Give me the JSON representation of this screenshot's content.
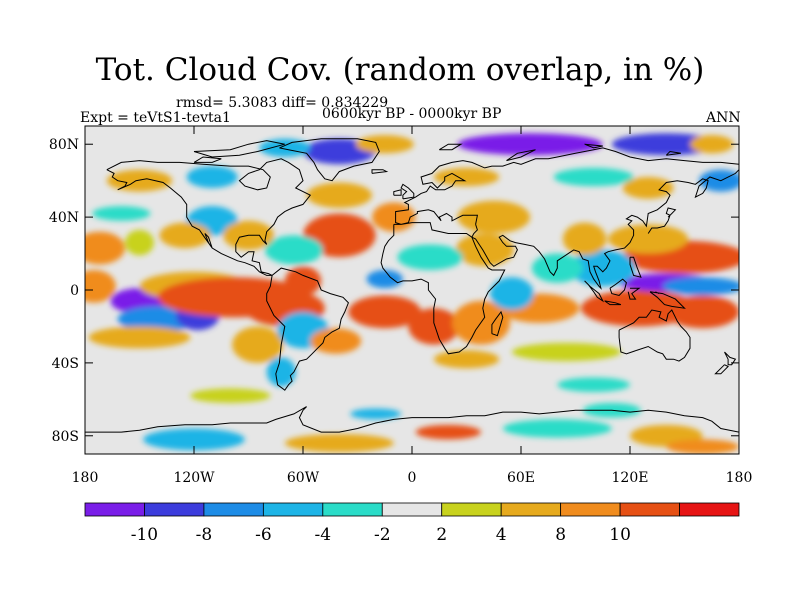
{
  "title": "Tot. Cloud Cov. (random overlap, in %)",
  "stats": "rmsd= 5.3083 diff= 0.834229",
  "experiment": "Expt = teVtS1-tevta1",
  "period": "0600kyr BP - 0000kyr BP",
  "season": "ANN",
  "map": {
    "projection": "cylindrical-equidistant",
    "lon_range": [
      -180,
      180
    ],
    "lat_range": [
      -90,
      90
    ],
    "lat_ticks": [
      {
        "value": 80,
        "label": "80N"
      },
      {
        "value": 40,
        "label": "40N"
      },
      {
        "value": 0,
        "label": "0"
      },
      {
        "value": -40,
        "label": "40S"
      },
      {
        "value": -80,
        "label": "80S"
      }
    ],
    "lon_ticks": [
      {
        "value": -180,
        "label": "180"
      },
      {
        "value": -120,
        "label": "120W"
      },
      {
        "value": -60,
        "label": "60W"
      },
      {
        "value": 0,
        "label": "0"
      },
      {
        "value": 60,
        "label": "60E"
      },
      {
        "value": 120,
        "label": "120E"
      },
      {
        "value": 180,
        "label": "180"
      }
    ]
  },
  "colorbar": {
    "colors": [
      "#7a1ee8",
      "#3c3cdc",
      "#1e8ce6",
      "#1eb4e6",
      "#2adcc8",
      "#e6e6e6",
      "#c8d21e",
      "#e6aa1e",
      "#f08c1e",
      "#e65014",
      "#e61414"
    ],
    "labels": [
      "-10",
      "-8",
      "-6",
      "-4",
      "-2",
      "2",
      "4",
      "8",
      "10"
    ]
  },
  "field_blobs": [
    {
      "lon": -172,
      "lat": 23,
      "w": 14,
      "h": 9,
      "v": 9
    },
    {
      "lon": -150,
      "lat": 26,
      "w": 8,
      "h": 7,
      "v": 3
    },
    {
      "lon": -175,
      "lat": 2,
      "w": 12,
      "h": 9,
      "v": 8
    },
    {
      "lon": -150,
      "lat": -6,
      "w": 16,
      "h": 7,
      "v": -11
    },
    {
      "lon": -140,
      "lat": -16,
      "w": 22,
      "h": 7,
      "v": -7
    },
    {
      "lon": -118,
      "lat": -14,
      "w": 12,
      "h": 8,
      "v": -10
    },
    {
      "lon": -150,
      "lat": -26,
      "w": 28,
      "h": 6,
      "v": 4
    },
    {
      "lon": -120,
      "lat": 2,
      "w": 30,
      "h": 8,
      "v": 5
    },
    {
      "lon": -98,
      "lat": -4,
      "w": 42,
      "h": 11,
      "v": 11
    },
    {
      "lon": -70,
      "lat": -10,
      "w": 22,
      "h": 10,
      "v": 10
    },
    {
      "lon": -85,
      "lat": -30,
      "w": 14,
      "h": 10,
      "v": 4
    },
    {
      "lon": -72,
      "lat": -45,
      "w": 8,
      "h": 8,
      "v": -6
    },
    {
      "lon": -60,
      "lat": -22,
      "w": 14,
      "h": 10,
      "v": -5
    },
    {
      "lon": -42,
      "lat": -28,
      "w": 14,
      "h": 7,
      "v": 9
    },
    {
      "lon": -15,
      "lat": -12,
      "w": 20,
      "h": 9,
      "v": 10
    },
    {
      "lon": 12,
      "lat": -20,
      "w": 14,
      "h": 10,
      "v": 10
    },
    {
      "lon": 38,
      "lat": -18,
      "w": 16,
      "h": 12,
      "v": 9
    },
    {
      "lon": 30,
      "lat": -38,
      "w": 18,
      "h": 5,
      "v": 4
    },
    {
      "lon": 70,
      "lat": -10,
      "w": 22,
      "h": 8,
      "v": 8
    },
    {
      "lon": 55,
      "lat": -2,
      "w": 12,
      "h": 9,
      "v": -5
    },
    {
      "lon": 85,
      "lat": -34,
      "w": 30,
      "h": 5,
      "v": 3
    },
    {
      "lon": 125,
      "lat": -10,
      "w": 32,
      "h": 10,
      "v": 11
    },
    {
      "lon": 160,
      "lat": -12,
      "w": 20,
      "h": 9,
      "v": 10
    },
    {
      "lon": 140,
      "lat": 4,
      "w": 26,
      "h": 5,
      "v": -11
    },
    {
      "lon": 160,
      "lat": 2,
      "w": 22,
      "h": 5,
      "v": -8
    },
    {
      "lon": 150,
      "lat": 18,
      "w": 34,
      "h": 9,
      "v": 10
    },
    {
      "lon": 130,
      "lat": 28,
      "w": 22,
      "h": 8,
      "v": 7
    },
    {
      "lon": 105,
      "lat": 12,
      "w": 18,
      "h": 10,
      "v": -5
    },
    {
      "lon": 95,
      "lat": 28,
      "w": 12,
      "h": 9,
      "v": 5
    },
    {
      "lon": 80,
      "lat": 12,
      "w": 14,
      "h": 8,
      "v": -4
    },
    {
      "lon": 45,
      "lat": 40,
      "w": 20,
      "h": 9,
      "v": 5
    },
    {
      "lon": 40,
      "lat": 22,
      "w": 16,
      "h": 9,
      "v": 4
    },
    {
      "lon": -40,
      "lat": 30,
      "w": 20,
      "h": 12,
      "v": 11
    },
    {
      "lon": -40,
      "lat": 52,
      "w": 18,
      "h": 7,
      "v": 7
    },
    {
      "lon": -10,
      "lat": 40,
      "w": 12,
      "h": 8,
      "v": 9
    },
    {
      "lon": 10,
      "lat": 18,
      "w": 18,
      "h": 7,
      "v": -4
    },
    {
      "lon": -15,
      "lat": 6,
      "w": 10,
      "h": 5,
      "v": -7
    },
    {
      "lon": -60,
      "lat": 5,
      "w": 10,
      "h": 8,
      "v": 10
    },
    {
      "lon": -65,
      "lat": 22,
      "w": 16,
      "h": 8,
      "v": -4
    },
    {
      "lon": -110,
      "lat": 38,
      "w": 14,
      "h": 8,
      "v": -6
    },
    {
      "lon": -90,
      "lat": 30,
      "w": 14,
      "h": 8,
      "v": 6
    },
    {
      "lon": -125,
      "lat": 30,
      "w": 14,
      "h": 7,
      "v": 7
    },
    {
      "lon": -150,
      "lat": 60,
      "w": 18,
      "h": 6,
      "v": 5
    },
    {
      "lon": -110,
      "lat": 62,
      "w": 14,
      "h": 6,
      "v": -5
    },
    {
      "lon": -40,
      "lat": 76,
      "w": 20,
      "h": 7,
      "v": -9
    },
    {
      "lon": -70,
      "lat": 78,
      "w": 14,
      "h": 5,
      "v": -6
    },
    {
      "lon": -15,
      "lat": 80,
      "w": 16,
      "h": 5,
      "v": 4
    },
    {
      "lon": 65,
      "lat": 80,
      "w": 40,
      "h": 6,
      "v": -11
    },
    {
      "lon": 140,
      "lat": 80,
      "w": 30,
      "h": 6,
      "v": -9
    },
    {
      "lon": 165,
      "lat": 80,
      "w": 12,
      "h": 5,
      "v": 4
    },
    {
      "lon": 30,
      "lat": 62,
      "w": 18,
      "h": 5,
      "v": 7
    },
    {
      "lon": 100,
      "lat": 62,
      "w": 22,
      "h": 5,
      "v": -4
    },
    {
      "lon": 130,
      "lat": 56,
      "w": 14,
      "h": 6,
      "v": 6
    },
    {
      "lon": 170,
      "lat": 60,
      "w": 12,
      "h": 6,
      "v": -7
    },
    {
      "lon": -120,
      "lat": -82,
      "w": 28,
      "h": 6,
      "v": -5
    },
    {
      "lon": -40,
      "lat": -84,
      "w": 30,
      "h": 5,
      "v": 4
    },
    {
      "lon": 20,
      "lat": -78,
      "w": 18,
      "h": 4,
      "v": 10
    },
    {
      "lon": 80,
      "lat": -76,
      "w": 30,
      "h": 5,
      "v": -4
    },
    {
      "lon": 140,
      "lat": -80,
      "w": 20,
      "h": 6,
      "v": 6
    },
    {
      "lon": -20,
      "lat": -68,
      "w": 14,
      "h": 3,
      "v": -6
    },
    {
      "lon": 110,
      "lat": -66,
      "w": 16,
      "h": 4,
      "v": -4
    },
    {
      "lon": 160,
      "lat": -86,
      "w": 20,
      "h": 4,
      "v": 9
    },
    {
      "lon": -160,
      "lat": 42,
      "w": 16,
      "h": 4,
      "v": -4
    },
    {
      "lon": 100,
      "lat": -52,
      "w": 20,
      "h": 4,
      "v": -3
    },
    {
      "lon": -100,
      "lat": -58,
      "w": 22,
      "h": 4,
      "v": 3
    }
  ]
}
